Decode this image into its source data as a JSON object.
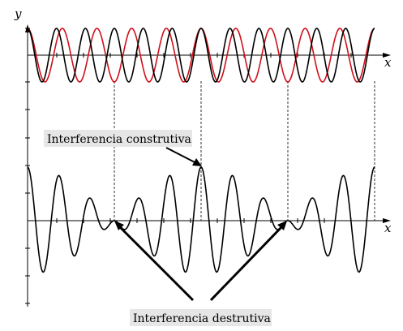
{
  "axes": {
    "y_label": "y",
    "x_label_top": "x",
    "x_label_bottom": "x"
  },
  "labels": {
    "constructive": "Interferencia construtiva",
    "destructive": "Interferencia destrutiva"
  },
  "colors": {
    "wave_1": "#000000",
    "wave_2": "#d0101a",
    "sum_wave": "#000000",
    "label_background": "#e6e6e6"
  },
  "waves": {
    "wave_1_cycles": 12,
    "wave_2_cycles": 10,
    "amplitude_ratio": 1.0
  }
}
